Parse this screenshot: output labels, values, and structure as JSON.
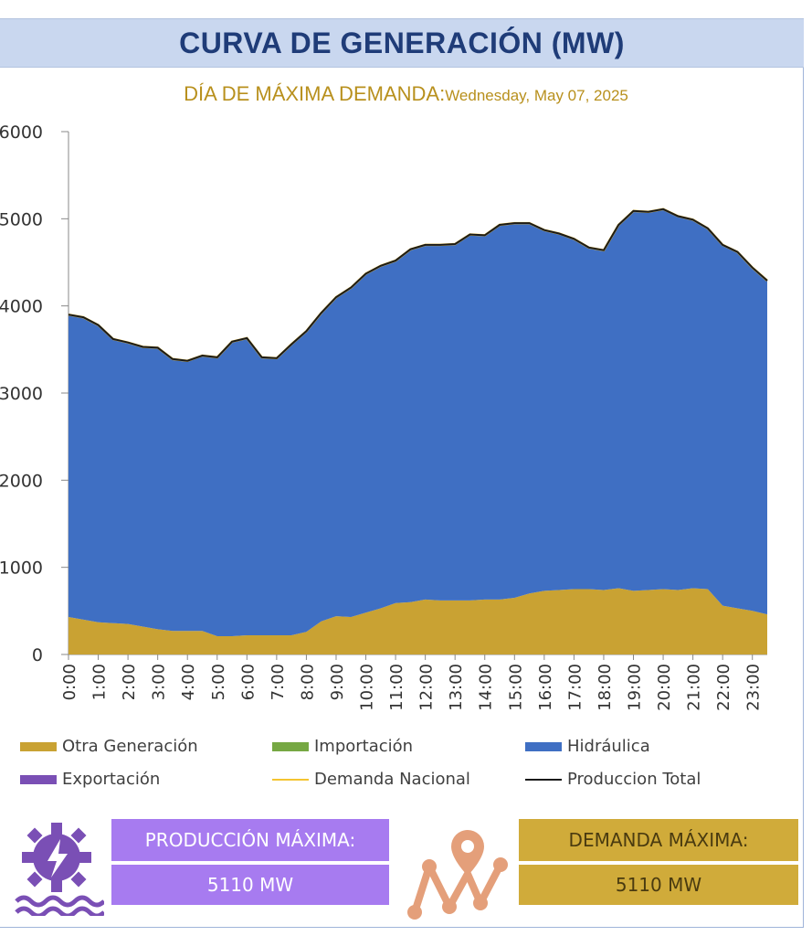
{
  "header": {
    "title": "CURVA DE GENERACIÓN (MW)"
  },
  "subtitle": {
    "label": "DÍA DE MÁXIMA DEMANDA:",
    "date": "Wednesday, May 07, 2025"
  },
  "colors": {
    "otra": "#c9a233",
    "importacion": "#76a843",
    "hidraulica": "#3f6fc3",
    "exportacion": "#7a4fb5",
    "demanda": "#f4c430",
    "produccion": "#1a1a1a"
  },
  "chart_data": {
    "type": "area",
    "x": [
      "0:00",
      "0:30",
      "1:00",
      "1:30",
      "2:00",
      "2:30",
      "3:00",
      "3:30",
      "4:00",
      "4:30",
      "5:00",
      "5:30",
      "6:00",
      "6:30",
      "7:00",
      "7:30",
      "8:00",
      "8:30",
      "9:00",
      "9:30",
      "10:00",
      "10:30",
      "11:00",
      "11:30",
      "12:00",
      "12:30",
      "13:00",
      "13:30",
      "14:00",
      "14:30",
      "15:00",
      "15:30",
      "16:00",
      "16:30",
      "17:00",
      "17:30",
      "18:00",
      "18:30",
      "19:00",
      "19:30",
      "20:00",
      "20:30",
      "21:00",
      "21:30",
      "22:00",
      "22:30",
      "23:00",
      "23:30"
    ],
    "tick_labels": [
      "0:00",
      "1:00",
      "2:00",
      "3:00",
      "4:00",
      "5:00",
      "6:00",
      "7:00",
      "8:00",
      "9:00",
      "10:00",
      "11:00",
      "12:00",
      "13:00",
      "14:00",
      "15:00",
      "16:00",
      "17:00",
      "18:00",
      "19:00",
      "20:00",
      "21:00",
      "22:00",
      "23:00"
    ],
    "ylim": [
      0,
      6000
    ],
    "yticks": [
      0,
      1000,
      2000,
      3000,
      4000,
      5000,
      6000
    ],
    "series": [
      {
        "name": "Otra Generación",
        "kind": "area",
        "values": [
          430,
          400,
          370,
          360,
          350,
          320,
          290,
          270,
          270,
          270,
          210,
          210,
          220,
          220,
          220,
          220,
          260,
          380,
          440,
          430,
          480,
          530,
          590,
          600,
          630,
          620,
          620,
          620,
          630,
          630,
          650,
          700,
          730,
          740,
          750,
          750,
          740,
          760,
          730,
          740,
          750,
          740,
          760,
          750,
          560,
          530,
          500,
          460
        ]
      },
      {
        "name": "Importación",
        "kind": "area",
        "values": [
          0,
          0,
          0,
          0,
          0,
          0,
          0,
          0,
          0,
          0,
          0,
          0,
          0,
          0,
          0,
          0,
          0,
          0,
          0,
          0,
          0,
          0,
          0,
          0,
          0,
          0,
          0,
          0,
          0,
          0,
          0,
          0,
          0,
          0,
          0,
          0,
          0,
          0,
          0,
          0,
          0,
          0,
          0,
          0,
          0,
          0,
          0,
          0
        ]
      },
      {
        "name": "Hidráulica",
        "kind": "area",
        "values": [
          3470,
          3470,
          3410,
          3260,
          3230,
          3210,
          3230,
          3120,
          3100,
          3160,
          3200,
          3380,
          3410,
          3190,
          3180,
          3340,
          3450,
          3540,
          3660,
          3780,
          3890,
          3930,
          3930,
          4050,
          4070,
          4080,
          4090,
          4200,
          4180,
          4300,
          4300,
          4250,
          4140,
          4090,
          4020,
          3920,
          3900,
          4170,
          4360,
          4340,
          4360,
          4290,
          4230,
          4140,
          4140,
          4090,
          3940,
          3830
        ]
      },
      {
        "name": "Exportación",
        "kind": "area",
        "values": [
          0,
          0,
          0,
          0,
          0,
          0,
          0,
          0,
          0,
          0,
          0,
          0,
          0,
          0,
          0,
          0,
          0,
          0,
          0,
          0,
          0,
          0,
          0,
          0,
          0,
          0,
          0,
          0,
          0,
          0,
          0,
          0,
          0,
          0,
          0,
          0,
          0,
          0,
          0,
          0,
          0,
          0,
          0,
          0,
          0,
          0,
          0,
          0
        ]
      },
      {
        "name": "Demanda Nacional",
        "kind": "line",
        "values": [
          3900,
          3870,
          3780,
          3620,
          3580,
          3530,
          3520,
          3390,
          3370,
          3430,
          3410,
          3590,
          3630,
          3410,
          3400,
          3560,
          3710,
          3920,
          4100,
          4210,
          4370,
          4460,
          4520,
          4650,
          4700,
          4700,
          4710,
          4820,
          4810,
          4930,
          4950,
          4950,
          4870,
          4830,
          4770,
          4670,
          4640,
          4930,
          5090,
          5080,
          5110,
          5030,
          4990,
          4890,
          4700,
          4620,
          4440,
          4290
        ]
      },
      {
        "name": "Produccion Total",
        "kind": "line",
        "values": [
          3900,
          3870,
          3780,
          3620,
          3580,
          3530,
          3520,
          3390,
          3370,
          3430,
          3410,
          3590,
          3630,
          3410,
          3400,
          3560,
          3710,
          3920,
          4100,
          4210,
          4370,
          4460,
          4520,
          4650,
          4700,
          4700,
          4710,
          4820,
          4810,
          4930,
          4950,
          4950,
          4870,
          4830,
          4770,
          4670,
          4640,
          4930,
          5090,
          5080,
          5110,
          5030,
          4990,
          4890,
          4700,
          4620,
          4440,
          4290
        ]
      }
    ]
  },
  "legend": [
    {
      "label": "Otra Generación",
      "key": "otra",
      "kind": "box"
    },
    {
      "label": "Importación",
      "key": "importacion",
      "kind": "box"
    },
    {
      "label": "Hidráulica",
      "key": "hidraulica",
      "kind": "box"
    },
    {
      "label": "Exportación",
      "key": "exportacion",
      "kind": "box"
    },
    {
      "label": "Demanda Nacional",
      "key": "demanda",
      "kind": "line"
    },
    {
      "label": "Produccion Total",
      "key": "produccion",
      "kind": "line"
    }
  ],
  "summary": {
    "produccion_label": "PRODUCCIÓN MÁXIMA:",
    "produccion_value": "5110 MW",
    "demanda_label": "DEMANDA MÁXIMA:",
    "demanda_value": "5110 MW"
  },
  "icons": {
    "produccion": "hydro-power-icon",
    "demanda": "location-route-icon"
  }
}
